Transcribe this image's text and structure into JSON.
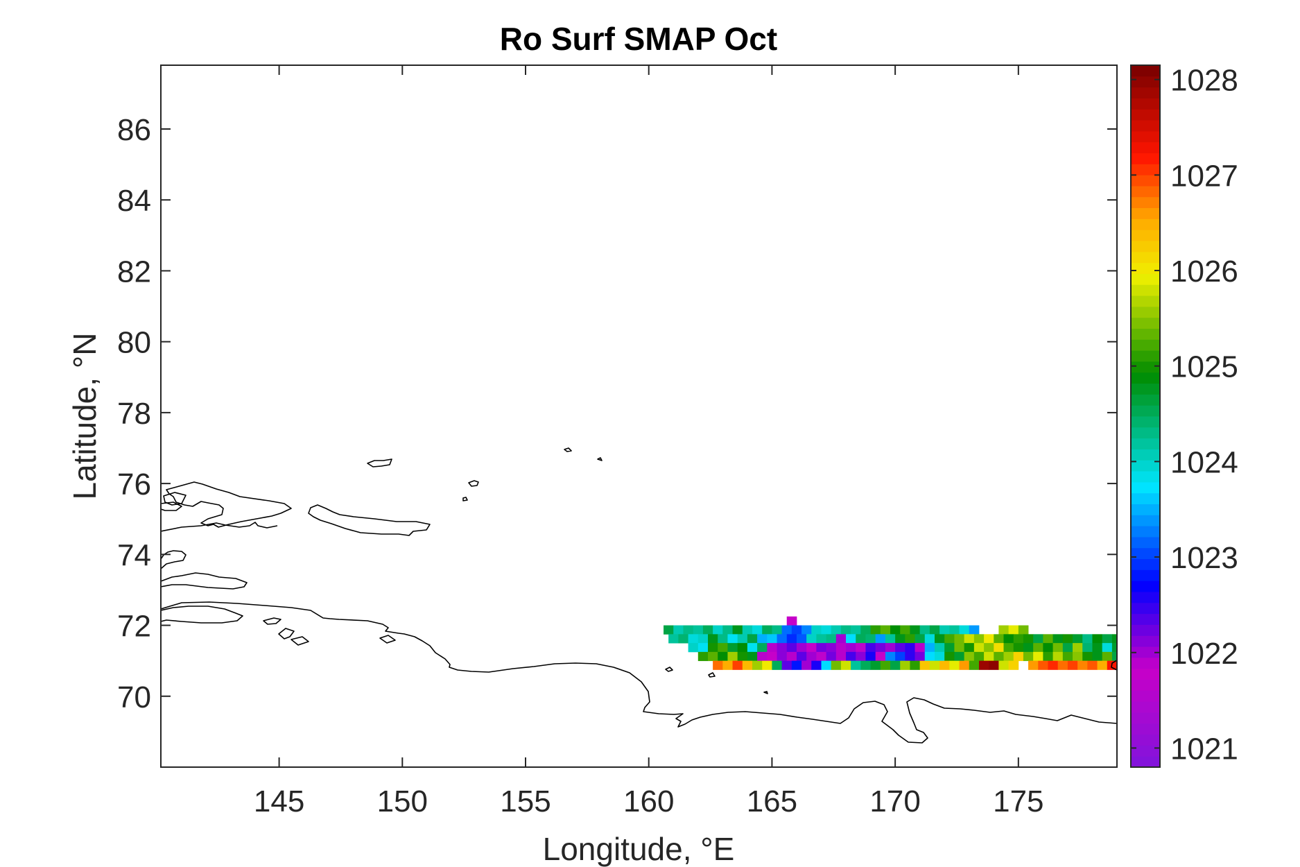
{
  "chart_data": {
    "type": "heatmap",
    "title": "Ro Surf SMAP Oct",
    "xlabel": "Longitude, °E",
    "ylabel": "Latitude, °N",
    "xlim": [
      140.2,
      179.0
    ],
    "ylim": [
      68.0,
      87.8
    ],
    "xticks": [
      145,
      150,
      155,
      160,
      165,
      170,
      175
    ],
    "yticks": [
      70,
      72,
      74,
      76,
      78,
      80,
      82,
      84,
      86
    ],
    "xtick_labels": [
      "145",
      "150",
      "155",
      "160",
      "165",
      "170",
      "175"
    ],
    "ytick_labels": [
      "70",
      "72",
      "74",
      "76",
      "78",
      "80",
      "82",
      "84",
      "86"
    ],
    "colorbar": {
      "range": [
        1020.8,
        1028.15
      ],
      "ticks": [
        1021,
        1022,
        1023,
        1024,
        1025,
        1026,
        1027,
        1028
      ],
      "tick_labels": [
        "1021",
        "1022",
        "1023",
        "1024",
        "1025",
        "1026",
        "1027",
        "1028"
      ],
      "colormap": "rainbow-purple-to-darkred"
    },
    "grid": false,
    "cell_size_deg": [
      0.4,
      0.25
    ],
    "rows": [
      {
        "lat": 72.125,
        "lon_start": 165.6,
        "values": [
          1021.8
        ]
      },
      {
        "lat": 71.875,
        "lon_start": 160.6,
        "values": [
          1024.6,
          1024.1,
          1024.3,
          1024.2,
          1024.5,
          1024.0,
          1024.3,
          1024.8,
          1024.1,
          1023.9,
          1024.5,
          1024.3,
          1023.2,
          1023.0,
          1023.3,
          1024.0,
          1023.9,
          1024.1,
          1024.3,
          1024.2,
          1024.5,
          1025.1,
          1025.3,
          1024.9,
          1025.2,
          1024.8,
          1024.3,
          1024.6,
          1024.1,
          1024.2,
          1023.9,
          1023.4,
          null,
          null,
          1025.6,
          1025.9,
          1025.4
        ]
      },
      {
        "lat": 71.625,
        "lon_start": 160.8,
        "values": [
          1024.2,
          1024.4,
          1023.9,
          1024.0,
          1024.8,
          1024.3,
          1023.8,
          1024.1,
          1024.6,
          1023.5,
          1023.6,
          1023.2,
          1022.9,
          1023.1,
          1024.0,
          1024.2,
          1024.3,
          1022.0,
          1023.7,
          1024.5,
          1024.4,
          1023.4,
          1024.2,
          1024.8,
          1025.1,
          1024.6,
          1023.9,
          1024.8,
          1025.2,
          1025.4,
          1025.8,
          1025.5,
          1026.0,
          1025.3,
          1024.9,
          1025.1,
          1025.0,
          1024.6,
          1025.3,
          1024.8,
          1025.0,
          1024.7,
          1024.3,
          1024.9,
          1024.6,
          1024.8,
          1027.0
        ]
      },
      {
        "lat": 71.375,
        "lon_start": 161.6,
        "values": [
          1024.0,
          1023.8,
          1025.0,
          1025.2,
          1024.7,
          1024.9,
          1023.8,
          1024.5,
          1021.9,
          1022.1,
          1022.3,
          1022.0,
          1021.8,
          1022.2,
          1022.1,
          1021.9,
          1022.0,
          1021.7,
          1022.4,
          1022.2,
          1022.0,
          1022.3,
          1022.5,
          1021.9,
          1023.5,
          1024.1,
          1024.7,
          1025.4,
          1025.0,
          1025.8,
          1025.5,
          1026.1,
          1025.2,
          1025.0,
          1024.8,
          1025.3,
          1024.9,
          1025.4,
          1024.6,
          1025.6,
          1024.4,
          1024.8,
          1023.9,
          1024.7,
          1025.6,
          1024.2
        ]
      },
      {
        "lat": 71.125,
        "lon_start": 162.0,
        "values": [
          1025.1,
          1025.3,
          1024.9,
          1025.6,
          1025.0,
          1024.8,
          1021.6,
          1021.8,
          1022.1,
          1021.9,
          1022.3,
          1022.0,
          1021.7,
          1022.2,
          1021.9,
          1022.4,
          1022.1,
          1022.6,
          1021.8,
          1023.3,
          1023.0,
          1022.5,
          1022.2,
          1023.7,
          1023.9,
          1025.0,
          1024.7,
          1025.5,
          1025.2,
          1025.8,
          1025.3,
          1025.6,
          1026.2,
          1025.4,
          1025.9,
          1025.1,
          1025.7,
          1025.2,
          1025.5,
          1025.0,
          1024.8,
          1025.3,
          1024.6,
          1024.9,
          1024.3,
          1024.0,
          1024.3,
          1024.1
        ]
      },
      {
        "lat": 70.875,
        "lon_start": 162.6,
        "values": [
          1026.8,
          1026.5,
          1027.0,
          1026.4,
          1025.6,
          1026.0,
          1024.5,
          1022.3,
          1022.8,
          1022.0,
          1022.6,
          1023.7,
          1025.4,
          1025.8,
          1024.2,
          1024.5,
          1024.7,
          1025.2,
          1024.6,
          1025.6,
          1025.1,
          1026.3,
          1025.8,
          1026.4,
          1025.9,
          1026.6,
          1025.2,
          1027.9,
          1028.0,
          1025.8,
          1026.2,
          null,
          1026.6,
          1026.9,
          1027.1,
          1026.8,
          1027.0,
          1026.7,
          1026.9,
          1026.5,
          1027.2,
          1026.8,
          1026.3,
          1026.1,
          1025.6,
          1026.0,
          1025.8,
          1025.2,
          1025.9,
          1026.1,
          1025.7,
          1025.9,
          1026.2,
          1025.8,
          1026.0,
          1025.7,
          1025.9,
          1026.3,
          1026.1
        ]
      }
    ]
  }
}
